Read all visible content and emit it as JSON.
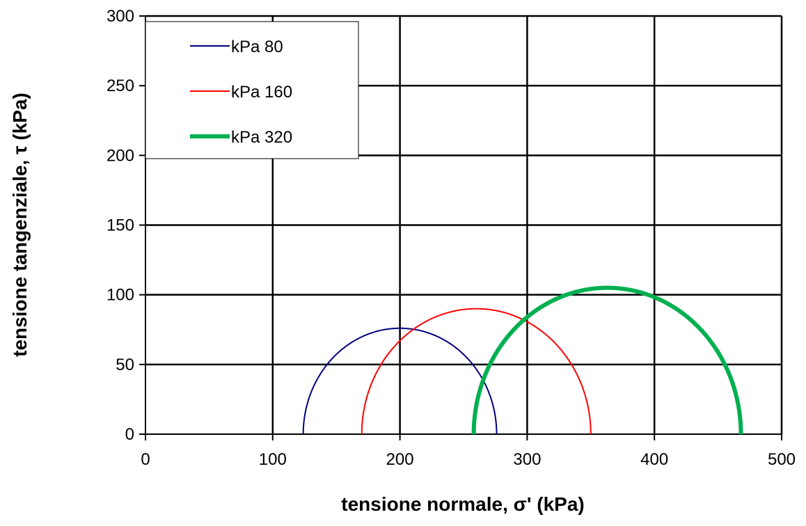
{
  "chart_data": {
    "type": "line",
    "title": "",
    "xlabel": "tensione normale, σ' (kPa)",
    "ylabel": "tensione tangenziale, τ (kPa)",
    "xlim": [
      0,
      500
    ],
    "ylim": [
      0,
      300
    ],
    "x_ticks": [
      0,
      100,
      200,
      300,
      400,
      500
    ],
    "y_ticks": [
      0,
      50,
      100,
      150,
      200,
      250,
      300
    ],
    "grid": true,
    "legend_position": "top-left",
    "series": [
      {
        "name": "kPa 80",
        "color": "#000080",
        "line_width": "thin",
        "sigma3": 124,
        "sigma1": 276,
        "center": 200,
        "radius": 76
      },
      {
        "name": "kPa 160",
        "color": "#ff0000",
        "line_width": "thin",
        "sigma3": 170,
        "sigma1": 350,
        "center": 260,
        "radius": 90
      },
      {
        "name": "kPa 320",
        "color": "#00b050",
        "line_width": "thick",
        "sigma3": 258,
        "sigma1": 468,
        "center": 363,
        "radius": 105
      }
    ]
  }
}
